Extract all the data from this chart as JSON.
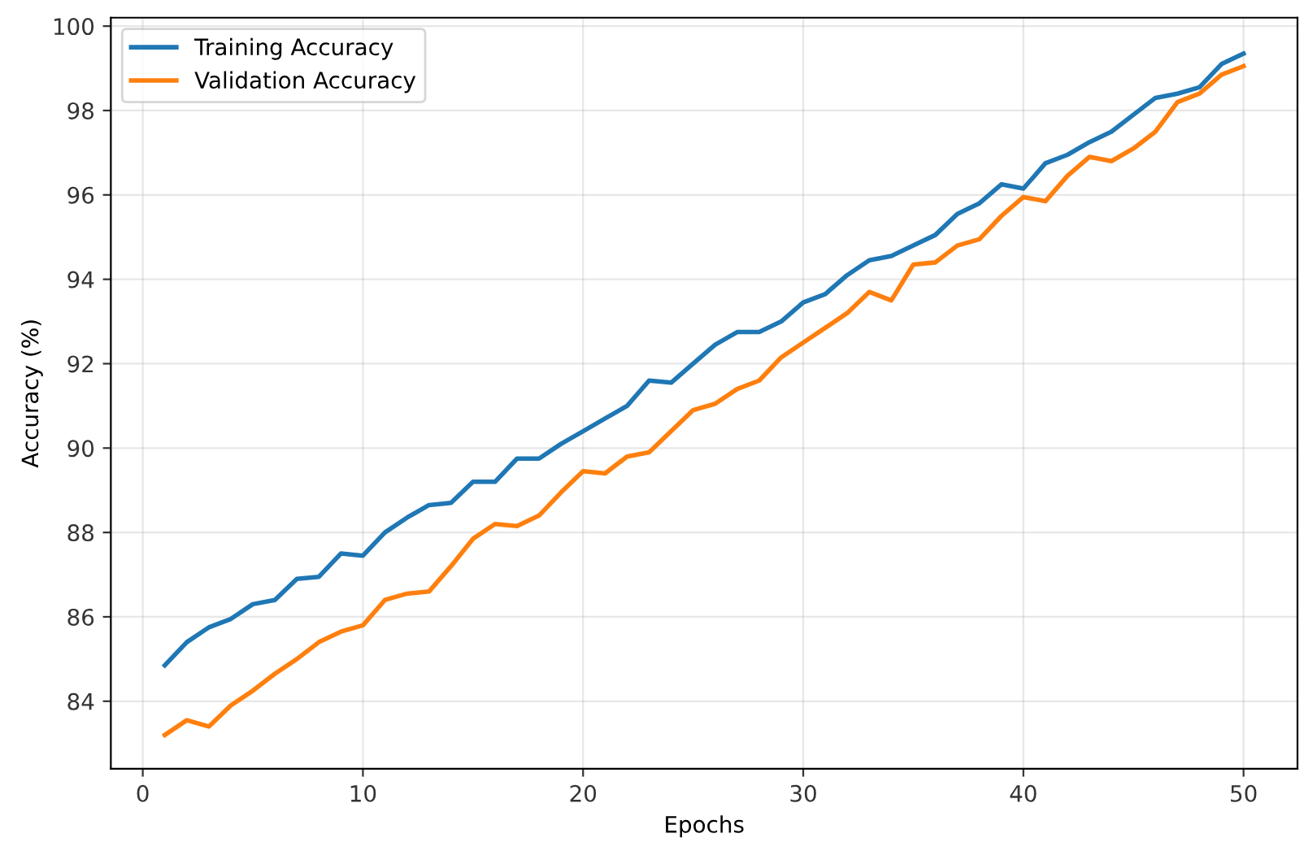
{
  "chart_data": {
    "type": "line",
    "xlabel": "Epochs",
    "ylabel": "Accuracy (%)",
    "x": [
      1,
      2,
      3,
      4,
      5,
      6,
      7,
      8,
      9,
      10,
      11,
      12,
      13,
      14,
      15,
      16,
      17,
      18,
      19,
      20,
      21,
      22,
      23,
      24,
      25,
      26,
      27,
      28,
      29,
      30,
      31,
      32,
      33,
      34,
      35,
      36,
      37,
      38,
      39,
      40,
      41,
      42,
      43,
      44,
      45,
      46,
      47,
      48,
      49,
      50
    ],
    "series": [
      {
        "name": "Training Accuracy",
        "color": "#1f77b4",
        "values": [
          84.85,
          85.4,
          85.75,
          85.95,
          86.3,
          86.4,
          86.9,
          86.95,
          87.5,
          87.45,
          88.0,
          88.35,
          88.65,
          88.7,
          89.2,
          89.2,
          89.75,
          89.75,
          90.1,
          90.4,
          90.7,
          91.0,
          91.6,
          91.55,
          92.0,
          92.45,
          92.75,
          92.75,
          93.0,
          93.45,
          93.65,
          94.1,
          94.45,
          94.55,
          94.8,
          95.05,
          95.55,
          95.8,
          96.25,
          96.15,
          96.75,
          96.95,
          97.25,
          97.5,
          97.9,
          98.3,
          98.4,
          98.55,
          99.1,
          99.35
        ]
      },
      {
        "name": "Validation Accuracy",
        "color": "#ff7f0e",
        "values": [
          83.2,
          83.55,
          83.4,
          83.9,
          84.25,
          84.65,
          85.0,
          85.4,
          85.65,
          85.8,
          86.4,
          86.55,
          86.6,
          87.2,
          87.85,
          88.2,
          88.15,
          88.4,
          88.95,
          89.45,
          89.4,
          89.8,
          89.9,
          90.4,
          90.9,
          91.05,
          91.4,
          91.6,
          92.15,
          92.5,
          92.85,
          93.2,
          93.7,
          93.5,
          94.35,
          94.4,
          94.8,
          94.95,
          95.5,
          95.95,
          95.85,
          96.45,
          96.9,
          96.8,
          97.1,
          97.5,
          98.2,
          98.4,
          98.85,
          99.05
        ]
      }
    ],
    "xlim": [
      -1.45,
      52.45
    ],
    "ylim": [
      82.4,
      100.2
    ],
    "xticks": [
      0,
      10,
      20,
      30,
      40,
      50
    ],
    "yticks": [
      84,
      86,
      88,
      90,
      92,
      94,
      96,
      98,
      100
    ],
    "grid": true,
    "legend": "top left",
    "line_style": "solid",
    "marker": "none"
  }
}
